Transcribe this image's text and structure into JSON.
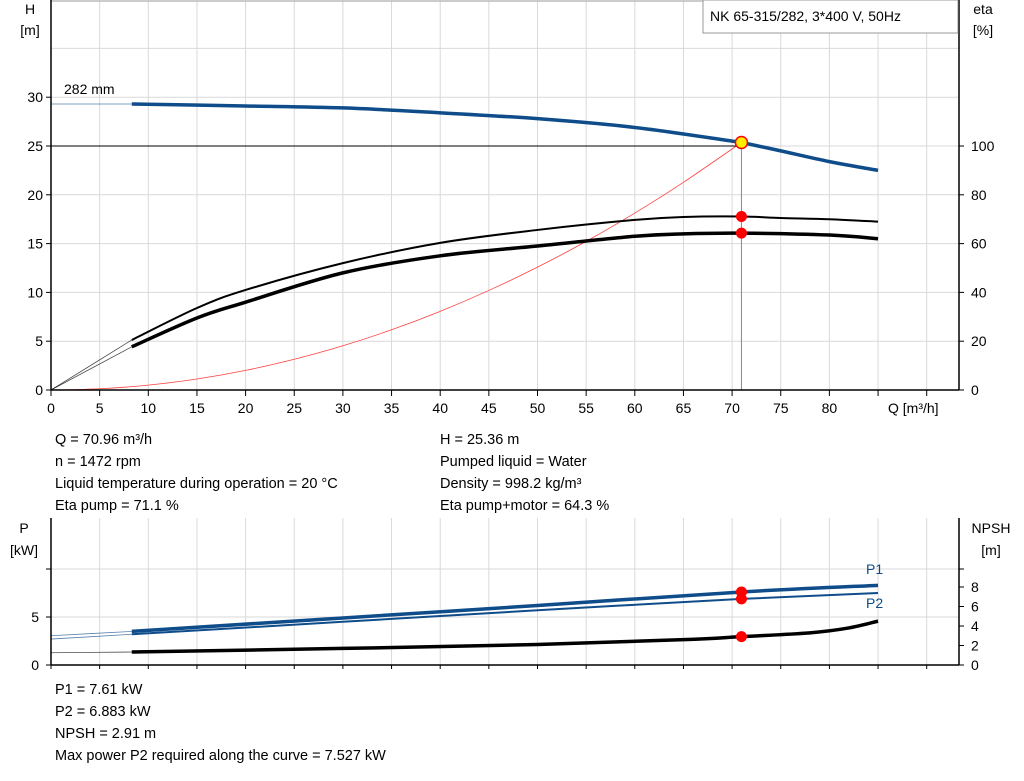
{
  "legend_box": "NK 65-315/282, 3*400 V, 50Hz",
  "colors": {
    "h_curve": "#0f4c8a",
    "power": "#0f4c8a",
    "eta": "#000000",
    "npsh": "#000000",
    "system_curve": "#ff4040",
    "duty_marker": "#ffee00",
    "points": "#ff0000",
    "grid": "#d9d9d9"
  },
  "chart_data": [
    {
      "type": "line",
      "xlabel": "Q [m³/h]",
      "ylabel_left": [
        "H",
        "[m]"
      ],
      "ylabel_right": [
        "eta",
        "[%]"
      ],
      "xlim": [
        0,
        93
      ],
      "ylim_left": [
        0,
        40
      ],
      "ylim_right": [
        0,
        160
      ],
      "xticks": [
        0,
        5,
        10,
        15,
        20,
        25,
        30,
        35,
        40,
        45,
        50,
        55,
        60,
        65,
        70,
        75,
        80
      ],
      "yticks_left": [
        0,
        5,
        10,
        15,
        20,
        25,
        30
      ],
      "yticks_right": [
        0,
        20,
        40,
        60,
        80,
        100
      ],
      "grid": true,
      "annotation": "282 mm",
      "series": [
        {
          "key": "H",
          "axis": "left",
          "x": [
            0,
            8.3,
            20,
            30,
            40,
            50,
            60,
            70,
            71,
            75,
            80,
            85
          ],
          "y": [
            29.3,
            29.3,
            29.1,
            28.9,
            28.4,
            27.8,
            26.9,
            25.5,
            25.36,
            24.5,
            23.4,
            22.5
          ]
        },
        {
          "key": "eta_pump",
          "axis": "right",
          "x": [
            0,
            8.3,
            15,
            20,
            30,
            40,
            50,
            60,
            65,
            71,
            75,
            80,
            85
          ],
          "y": [
            0,
            20.5,
            33.6,
            41,
            52,
            60.3,
            65.6,
            69.7,
            70.9,
            71.1,
            70.5,
            70,
            69
          ]
        },
        {
          "key": "eta_pump_motor",
          "axis": "right",
          "x": [
            0,
            8.3,
            15,
            20,
            30,
            40,
            50,
            60,
            65,
            71,
            80,
            85
          ],
          "y": [
            0,
            17.7,
            29.5,
            36,
            48,
            55,
            59,
            63,
            64,
            64.3,
            63.5,
            62
          ]
        },
        {
          "key": "system",
          "axis": "left",
          "x": [
            0,
            5,
            10,
            15,
            20,
            25,
            30,
            35,
            40,
            45,
            50,
            55,
            60,
            65,
            70.96
          ],
          "y": [
            0,
            0.13,
            0.5,
            1.13,
            2.01,
            3.15,
            4.53,
            6.17,
            8.06,
            10.2,
            12.59,
            15.23,
            18.13,
            21.28,
            25.36
          ]
        }
      ],
      "duty_point": {
        "Q": 70.96,
        "H": 25.36,
        "eta_pump": 71.1,
        "eta_pump_motor": 64.3
      }
    },
    {
      "type": "line",
      "ylabel_left": [
        "P",
        "[kW]"
      ],
      "ylabel_right": [
        "NPSH",
        "[m]"
      ],
      "xlim": [
        0,
        93
      ],
      "ylim_left": [
        0,
        15
      ],
      "ylim_right": [
        0,
        15
      ],
      "yticks_left": [
        0,
        5
      ],
      "yticks_right": [
        0,
        2,
        4,
        6,
        8
      ],
      "grid": true,
      "series": [
        {
          "name": "P1",
          "key": "P1",
          "axis": "left",
          "x": [
            0,
            8.3,
            30,
            50,
            71,
            85
          ],
          "y": [
            3.05,
            3.5,
            4.9,
            6.2,
            7.61,
            8.3
          ]
        },
        {
          "name": "P2",
          "key": "P2",
          "axis": "left",
          "x": [
            0,
            8.3,
            30,
            50,
            71,
            85
          ],
          "y": [
            2.7,
            3.2,
            4.5,
            5.7,
            6.883,
            7.5
          ]
        },
        {
          "key": "NPSH",
          "axis": "right",
          "x": [
            0,
            8.3,
            30,
            50,
            65,
            71,
            78,
            82,
            85
          ],
          "y": [
            1.26,
            1.33,
            1.7,
            2.1,
            2.6,
            2.91,
            3.3,
            3.8,
            4.5
          ]
        }
      ],
      "duty_point": {
        "Q": 70.96,
        "P1": 7.61,
        "P2": 6.883,
        "NPSH": 2.91
      }
    }
  ],
  "info_top_left": [
    "Q = 70.96 m³/h",
    "n = 1472 rpm",
    "Liquid temperature during operation = 20 °C",
    "Eta pump = 71.1 %"
  ],
  "info_top_right": [
    "H = 25.36 m",
    "Pumped liquid = Water",
    "Density = 998.2 kg/m³",
    "Eta pump+motor = 64.3 %"
  ],
  "info_bottom": [
    "P1 = 7.61 kW",
    "P2 = 6.883 kW",
    "NPSH = 2.91 m",
    "Max power P2 required along the curve = 7.527 kW"
  ]
}
